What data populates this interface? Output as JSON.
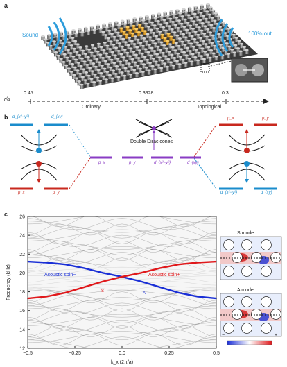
{
  "panel_a": {
    "label": "a",
    "sound_label": "Sound",
    "out_label": "100% out",
    "axis_symbol": "r/a",
    "ticks": [
      "0.45",
      "0.3928",
      "0.3"
    ],
    "left_region": "Ordinary",
    "right_region": "Topological"
  },
  "panel_b": {
    "label": "b",
    "left_top_orbitals": [
      "d_{x²−y²}",
      "d_{xy}"
    ],
    "left_bottom_orbitals": [
      "p_x",
      "p_y"
    ],
    "center_levels": [
      "p_x",
      "p_y",
      "d_{x²−y²}",
      "d_{xy}"
    ],
    "cone_label": "Double Dirac cones",
    "right_top_orbitals": [
      "p_x",
      "p_y"
    ],
    "right_bottom_orbitals": [
      "d_{x²−y²}",
      "d_{xy}"
    ],
    "colors": {
      "blue": "#1a8ccc",
      "red": "#c8281e",
      "purple": "#8a3cc4"
    }
  },
  "panel_c": {
    "label": "c",
    "spin_minus": "Acoustic spin−",
    "spin_plus": "Acoustic spin+",
    "s_mode_marker": "S",
    "a_mode_marker": "A",
    "s_mode_title": "S mode",
    "a_mode_title": "A mode",
    "colorbar_minus": "−",
    "colorbar_plus": "+",
    "chart_data": {
      "type": "line",
      "xlabel": "k_x (2π/a)",
      "ylabel": "Frequency (kHz)",
      "xlim": [
        -0.5,
        0.5
      ],
      "ylim": [
        12,
        26
      ],
      "xticks": [
        "−0.5",
        "−0.25",
        "0.0",
        "0.25",
        "0.5"
      ],
      "yticks": [
        "12",
        "14",
        "16",
        "18",
        "20",
        "22",
        "24",
        "26"
      ],
      "series": [
        {
          "name": "Acoustic spin−",
          "color": "#1a2fd6",
          "x": [
            -0.5,
            -0.4,
            -0.3,
            -0.2,
            -0.1,
            0.0,
            0.1,
            0.2,
            0.3,
            0.4,
            0.5
          ],
          "y": [
            21.2,
            21.1,
            20.9,
            20.5,
            20.0,
            19.6,
            19.1,
            18.5,
            17.9,
            17.5,
            17.3
          ]
        },
        {
          "name": "Acoustic spin+",
          "color": "#e0181b",
          "x": [
            -0.5,
            -0.4,
            -0.3,
            -0.2,
            -0.1,
            0.0,
            0.1,
            0.2,
            0.3,
            0.4,
            0.5
          ],
          "y": [
            17.3,
            17.5,
            17.9,
            18.5,
            19.1,
            19.6,
            20.0,
            20.5,
            20.9,
            21.1,
            21.2
          ]
        }
      ]
    }
  }
}
